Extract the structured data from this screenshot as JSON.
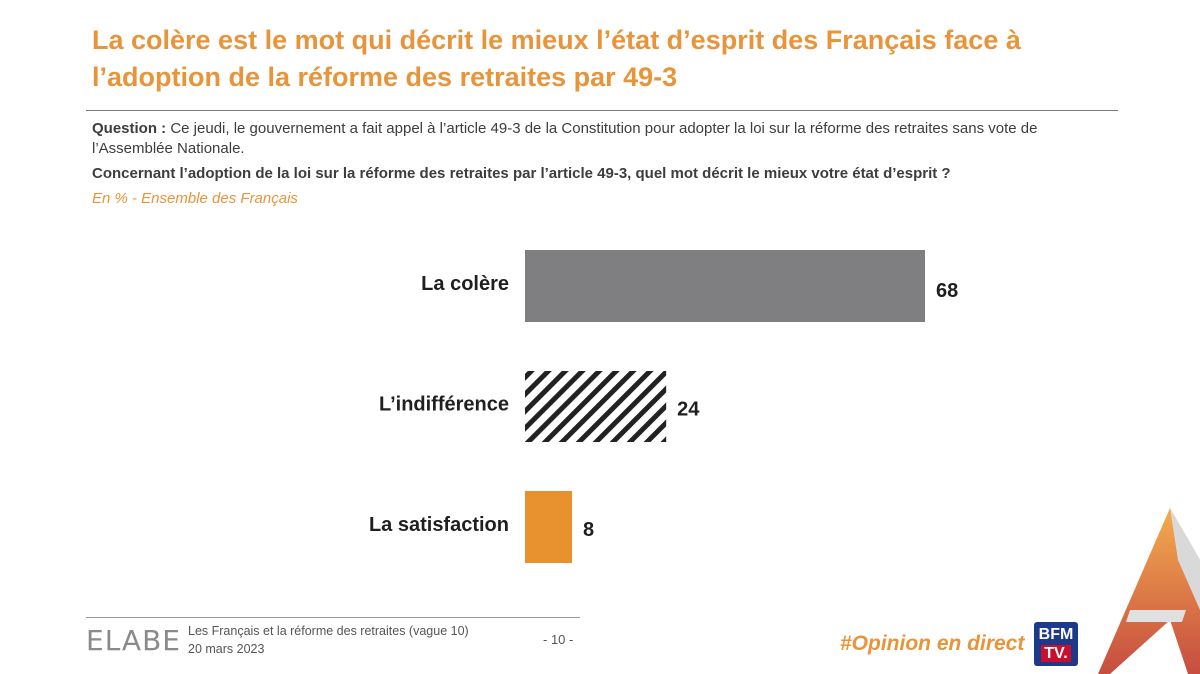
{
  "slide": {
    "title": "La colère est le mot qui décrit le mieux l’état d’esprit des Français face à l’adoption de la réforme des retraites par 49-3",
    "question_label": "Question :",
    "question_text": " Ce jeudi, le gouvernement a fait appel à l’article 49-3 de la Constitution pour adopter la loi sur la réforme des retraites sans vote de l’Assemblée Nationale.",
    "question_main": "Concernant l’adoption de la loi sur la réforme des retraites par l’article 49-3, quel mot décrit le mieux votre état d’esprit ?",
    "unit_note": "En % - Ensemble des Français"
  },
  "chart_data": {
    "type": "bar",
    "orientation": "horizontal",
    "categories": [
      "La colère",
      "L’indifférence",
      "La satisfaction"
    ],
    "values": [
      68,
      24,
      8
    ],
    "xlim": [
      0,
      68
    ],
    "fills": [
      "solid",
      "hatched",
      "solid"
    ],
    "colors": [
      "#7f7e80",
      "#222222",
      "#e8912f"
    ],
    "grid": false,
    "legend": "none"
  },
  "footer": {
    "logo": "ELABE",
    "study": "Les Français et la réforme des retraites (vague 10)",
    "date": "20 mars 2023",
    "page": "- 10 -",
    "hashtag": "#Opinion en direct",
    "broadcaster_line1": "BFM",
    "broadcaster_line2": "TV."
  },
  "colors": {
    "accent": "#e8943a",
    "text": "#3a3a3a",
    "broadcaster_blue": "#1d3a8a",
    "broadcaster_red": "#c8102e"
  }
}
